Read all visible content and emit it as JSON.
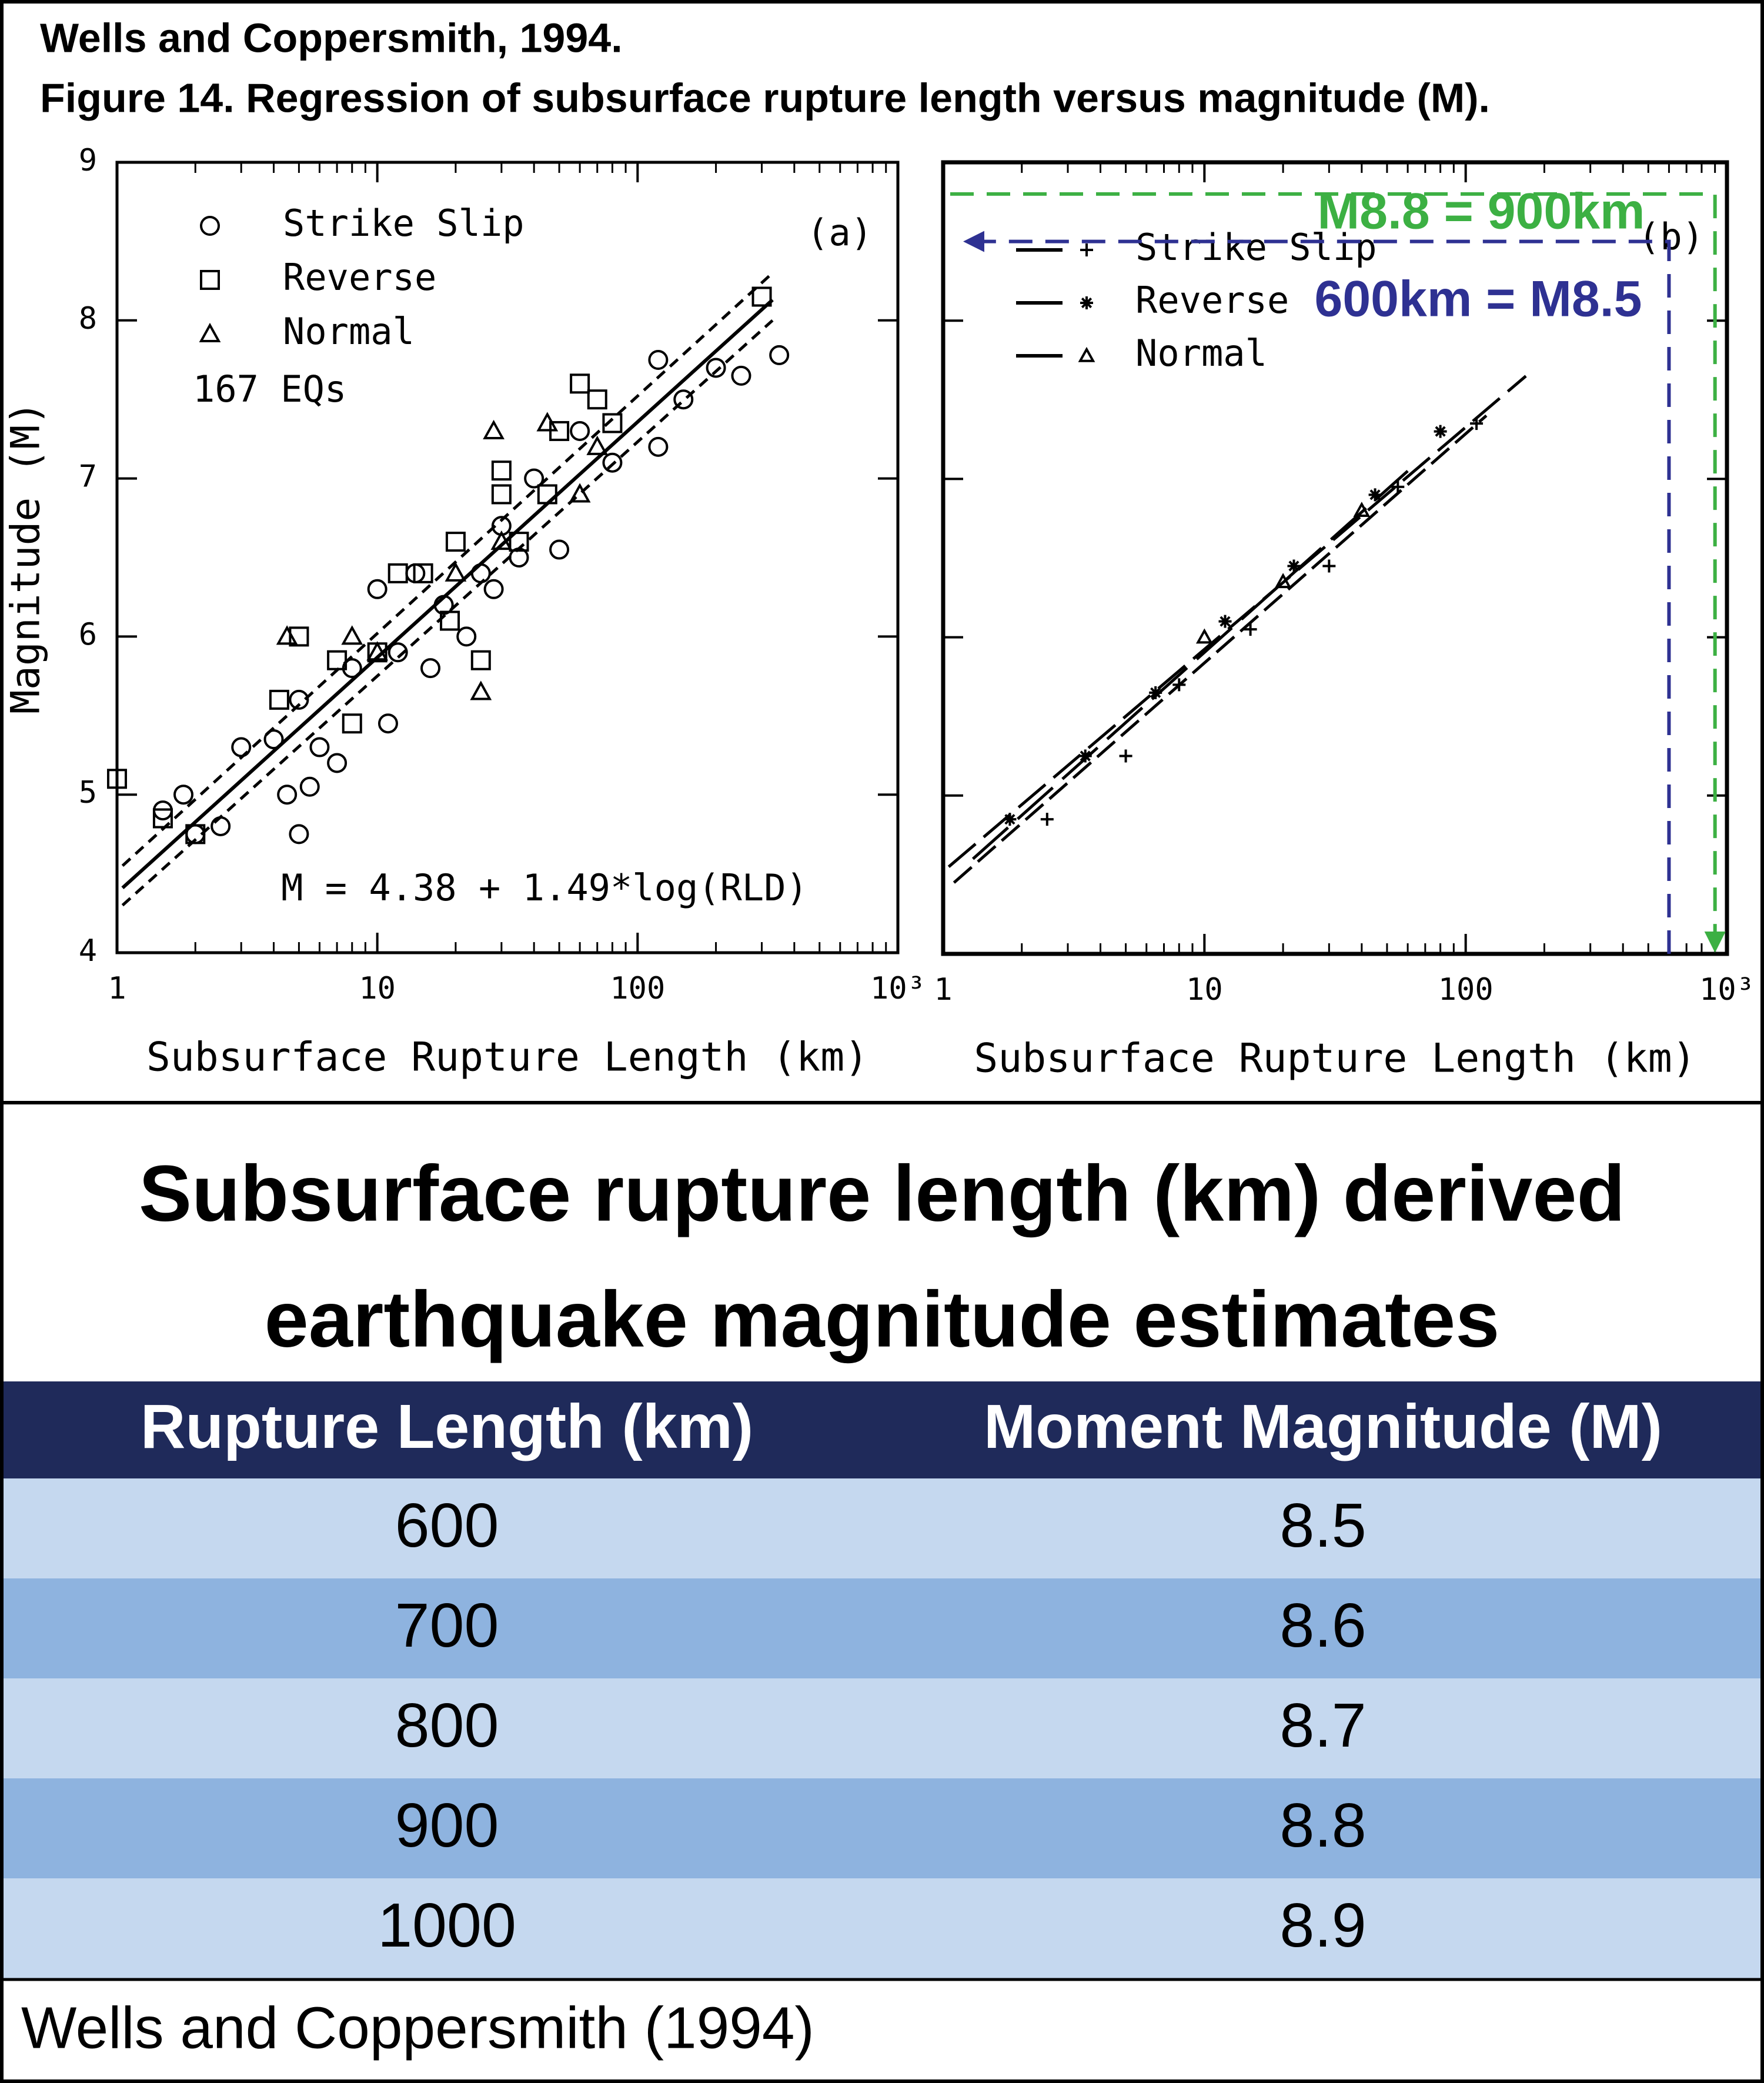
{
  "header": {
    "source": "Wells and Coppersmith, 1994.",
    "caption": "Figure 14. Regression of subsurface rupture length versus magnitude (M)."
  },
  "chart_data": [
    {
      "type": "scatter",
      "xlabel": "Subsurface Rupture Length (km)",
      "ylabel": "Magnitude (M)",
      "xscale": "log",
      "xlim": [
        1,
        1000
      ],
      "xticks": [
        1,
        10,
        100,
        {
          "value": 1000,
          "label": "10³"
        }
      ],
      "ylim": [
        4,
        9
      ],
      "yticks": [
        4,
        5,
        6,
        7,
        8,
        9
      ],
      "panel": "(a)",
      "count_label": "167  EQs",
      "equation": "M = 4.38 + 1.49*log(RLD)",
      "series": [
        {
          "name": "Strike Slip",
          "marker": "circle",
          "color": "#000",
          "x": [
            1.5,
            1.8,
            2,
            2.5,
            3,
            4,
            4.5,
            5,
            5.5,
            5,
            6,
            7,
            8,
            10,
            11,
            12,
            14,
            16,
            18,
            22,
            25,
            28,
            30,
            35,
            40,
            50,
            60,
            80,
            120,
            150,
            200,
            250,
            350,
            120
          ],
          "values": [
            4.9,
            5.0,
            4.75,
            4.8,
            5.3,
            5.35,
            5.0,
            4.75,
            5.05,
            5.6,
            5.3,
            5.2,
            5.8,
            6.3,
            5.45,
            5.9,
            6.4,
            5.8,
            6.2,
            6.0,
            6.4,
            6.3,
            6.7,
            6.5,
            7.0,
            6.55,
            7.3,
            7.1,
            7.75,
            7.5,
            7.7,
            7.65,
            7.78,
            7.2
          ]
        },
        {
          "name": "Reverse",
          "marker": "square",
          "color": "#000",
          "x": [
            1,
            1.5,
            2,
            4.2,
            5,
            7,
            8,
            10,
            12,
            15,
            19,
            20,
            25,
            30,
            30,
            35,
            45,
            50,
            60,
            70,
            80,
            300
          ],
          "values": [
            5.1,
            4.85,
            4.75,
            5.6,
            6.0,
            5.85,
            5.45,
            5.9,
            6.4,
            6.4,
            6.1,
            6.6,
            5.85,
            7.05,
            6.9,
            6.6,
            6.9,
            7.3,
            7.6,
            7.5,
            7.35,
            8.15
          ]
        },
        {
          "name": "Normal",
          "marker": "triangle",
          "color": "#000",
          "x": [
            4.5,
            8,
            10,
            20,
            25,
            30,
            28,
            45,
            60,
            70
          ],
          "values": [
            6.0,
            6.0,
            5.9,
            6.4,
            5.65,
            6.6,
            7.3,
            7.35,
            6.9,
            7.2
          ]
        }
      ],
      "fit": {
        "x": [
          1.05,
          330
        ],
        "values": [
          4.41,
          8.13
        ]
      },
      "bands": [
        {
          "x": [
            1.05,
            330
          ],
          "values": [
            4.55,
            8.3
          ]
        },
        {
          "x": [
            1.05,
            330
          ],
          "values": [
            4.3,
            8.0
          ]
        }
      ]
    },
    {
      "type": "line",
      "xlabel": "Subsurface Rupture Length (km)",
      "xscale": "log",
      "xlim": [
        1,
        1000
      ],
      "xticks": [
        1,
        10,
        100,
        {
          "value": 1000,
          "label": "10³"
        }
      ],
      "ylim": [
        4,
        9
      ],
      "yticks": [
        4,
        5,
        6,
        7,
        8,
        9
      ],
      "panel": "(b)",
      "series": [
        {
          "name": "Strike Slip",
          "marker": "plus",
          "color": "#000",
          "line": {
            "x": [
              1.1,
              120
            ],
            "values": [
              4.45,
              7.4
            ]
          },
          "x": [
            2.5,
            5,
            8,
            15,
            30,
            55,
            110
          ],
          "values": [
            4.85,
            5.25,
            5.7,
            6.05,
            6.45,
            6.95,
            7.35
          ]
        },
        {
          "name": "Reverse",
          "marker": "star",
          "color": "#000",
          "line": {
            "x": [
              1.05,
              170
            ],
            "values": [
              4.55,
              7.65
            ]
          },
          "x": [
            1.8,
            3.5,
            6.5,
            12,
            22,
            45,
            80
          ],
          "values": [
            4.85,
            5.25,
            5.65,
            6.1,
            6.45,
            6.9,
            7.3
          ]
        },
        {
          "name": "Normal",
          "marker": "triangle",
          "color": "#000",
          "line": {
            "x": [
              1.3,
              60
            ],
            "values": [
              4.6,
              7.05
            ]
          },
          "x": [
            10,
            20,
            40
          ],
          "values": [
            6.0,
            6.35,
            6.8
          ]
        }
      ],
      "guides": [
        {
          "label": "M8.8 = 900km",
          "x": 900,
          "y": 8.8,
          "color": "#3cb043"
        },
        {
          "label": "600km = M8.5",
          "x": 600,
          "y": 8.5,
          "color": "#2e3192"
        }
      ]
    }
  ],
  "table": {
    "title_lines": [
      "Subsurface rupture length (km) derived",
      "earthquake magnitude estimates"
    ],
    "columns": [
      "Rupture Length (km)",
      "Moment Magnitude (M)"
    ],
    "rows": [
      [
        600,
        8.5
      ],
      [
        700,
        8.6
      ],
      [
        800,
        8.7
      ],
      [
        900,
        8.8
      ],
      [
        1000,
        8.9
      ]
    ],
    "footer": "Wells and Coppersmith (1994)"
  }
}
